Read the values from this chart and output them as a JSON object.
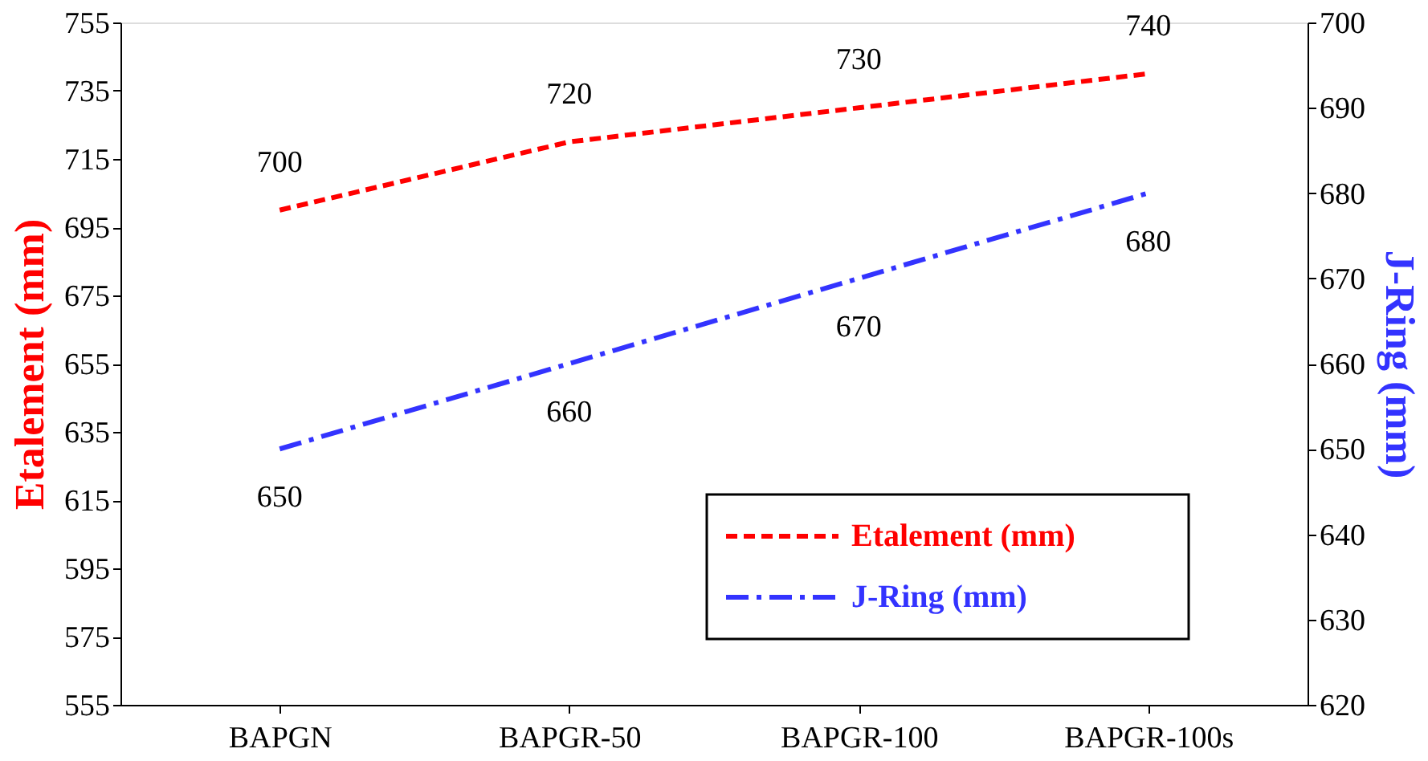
{
  "chart_data": {
    "type": "line",
    "ylabel": "Etalement (mm)",
    "y2label": "J-Ring (mm)",
    "categories": [
      "BAPGN",
      "BAPGR-50",
      "BAPGR-100",
      "BAPGR-100s"
    ],
    "series": [
      {
        "name": "Etalement (mm)",
        "color": "#ff0000",
        "values": [
          700,
          720,
          730,
          740
        ],
        "line_style": "dashed"
      },
      {
        "name": "J-Ring (mm)",
        "color": "#3333ff",
        "values": [
          650,
          660,
          670,
          680
        ],
        "axis": "y2",
        "line_style": "dashdot"
      }
    ],
    "ylim": [
      555,
      755
    ],
    "yticks": [
      555,
      575,
      595,
      615,
      635,
      655,
      675,
      695,
      715,
      735,
      755
    ],
    "y2lim": [
      620,
      700
    ],
    "y2ticks": [
      620,
      630,
      640,
      650,
      660,
      670,
      680,
      690,
      700
    ],
    "data_labels": true,
    "grid": false,
    "legend": "bottom right",
    "marker": "none"
  }
}
